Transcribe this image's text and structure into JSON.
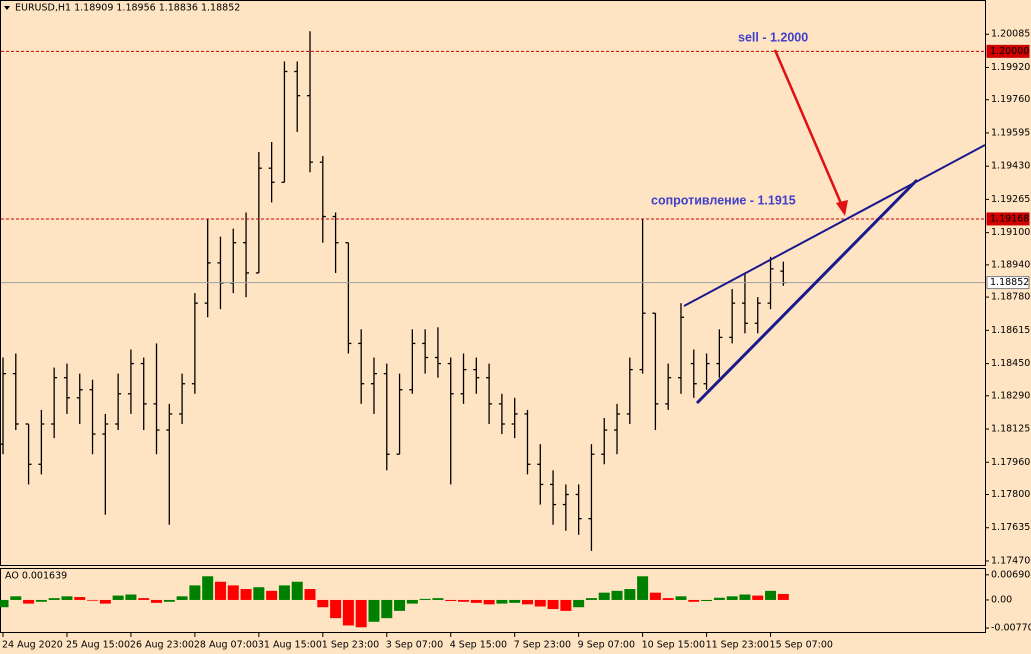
{
  "chart_data": [
    {
      "type": "ohlc",
      "title": "EURUSD,H1  1.18909 1.18956 1.18836 1.18852",
      "color": "#000000",
      "xlim": [
        0,
        77
      ],
      "ylim": [
        1.1745,
        1.2025
      ],
      "yticks": [
        1.20085,
        {
          "value": 1.1992,
          "label": "1.19920"
        },
        {
          "value": 1.1976,
          "label": "1.19760"
        },
        1.19595,
        {
          "value": 1.1943,
          "label": "1.19430"
        },
        1.19265,
        {
          "value": 1.191,
          "label": "1.19100"
        },
        {
          "value": 1.1894,
          "label": "1.18940"
        },
        {
          "value": 1.1878,
          "label": "1.18780"
        },
        1.18615,
        {
          "value": 1.1845,
          "label": "1.18450"
        },
        {
          "value": 1.1829,
          "label": "1.18290"
        },
        1.18125,
        {
          "value": 1.1796,
          "label": "1.17960"
        },
        {
          "value": 1.178,
          "label": "1.17800"
        },
        1.17635,
        {
          "value": 1.1747,
          "label": "1.17470"
        }
      ],
      "open": [
        1.1805,
        1.184,
        1.1815,
        1.1795,
        1.1815,
        1.1838,
        1.1828,
        1.1832,
        1.181,
        1.1815,
        1.183,
        1.1845,
        1.1825,
        1.1812,
        1.182,
        1.1835,
        1.1875,
        1.1895,
        1.1885,
        1.1905,
        1.189,
        1.1942,
        1.1935,
        1.199,
        1.1978,
        1.1945,
        1.1918,
        1.1905,
        1.1855,
        1.1835,
        1.184,
        1.18,
        1.1832,
        1.1855,
        1.1848,
        1.1845,
        1.183,
        1.1842,
        1.1838,
        1.1825,
        1.1815,
        1.182,
        1.1795,
        1.1785,
        1.1775,
        1.178,
        1.1768,
        1.18,
        1.1812,
        1.182,
        1.1842,
        1.187,
        1.1825,
        1.1838,
        1.1845,
        1.1835,
        1.1845,
        1.1858,
        1.1875,
        1.1865,
        1.1875,
        1.18909
      ],
      "high": [
        1.1848,
        1.185,
        1.1815,
        1.1822,
        1.1843,
        1.1845,
        1.184,
        1.1837,
        1.182,
        1.184,
        1.1852,
        1.1848,
        1.1855,
        1.1825,
        1.184,
        1.188,
        1.1917,
        1.1908,
        1.1912,
        1.192,
        1.195,
        1.1955,
        1.1995,
        1.1995,
        1.201,
        1.1948,
        1.192,
        1.1905,
        1.1862,
        1.1848,
        1.1845,
        1.184,
        1.1862,
        1.1862,
        1.1863,
        1.1848,
        1.185,
        1.1848,
        1.1845,
        1.183,
        1.1828,
        1.1822,
        1.1805,
        1.1792,
        1.1785,
        1.1785,
        1.1805,
        1.1818,
        1.1825,
        1.1848,
        1.1917,
        1.187,
        1.1845,
        1.1875,
        1.1852,
        1.185,
        1.1862,
        1.1882,
        1.189,
        1.1878,
        1.1898,
        1.18956
      ],
      "low": [
        1.18,
        1.1812,
        1.1785,
        1.179,
        1.1808,
        1.182,
        1.1815,
        1.18,
        1.177,
        1.1812,
        1.182,
        1.1812,
        1.18,
        1.1765,
        1.1815,
        1.183,
        1.1868,
        1.1872,
        1.188,
        1.1878,
        1.189,
        1.1925,
        1.1935,
        1.196,
        1.194,
        1.1905,
        1.189,
        1.185,
        1.1825,
        1.182,
        1.1792,
        1.18,
        1.183,
        1.184,
        1.1838,
        1.1785,
        1.1825,
        1.183,
        1.1815,
        1.181,
        1.1808,
        1.179,
        1.1775,
        1.1765,
        1.1762,
        1.176,
        1.1752,
        1.1795,
        1.18,
        1.1815,
        1.184,
        1.1812,
        1.1822,
        1.183,
        1.1828,
        1.1832,
        1.1838,
        1.1855,
        1.186,
        1.186,
        1.1872,
        1.18836
      ],
      "close": [
        1.184,
        1.1815,
        1.1795,
        1.1815,
        1.1838,
        1.1828,
        1.1832,
        1.181,
        1.1815,
        1.183,
        1.1845,
        1.1825,
        1.1812,
        1.182,
        1.1835,
        1.1875,
        1.1895,
        1.1885,
        1.1905,
        1.189,
        1.1942,
        1.1935,
        1.199,
        1.1978,
        1.1945,
        1.1918,
        1.1905,
        1.1855,
        1.1835,
        1.184,
        1.18,
        1.1832,
        1.1855,
        1.1848,
        1.1845,
        1.183,
        1.1842,
        1.1838,
        1.1825,
        1.1815,
        1.182,
        1.1795,
        1.1785,
        1.1775,
        1.178,
        1.1768,
        1.18,
        1.1812,
        1.182,
        1.1842,
        1.187,
        1.1825,
        1.1838,
        1.1868,
        1.1835,
        1.1845,
        1.1858,
        1.1875,
        1.1865,
        1.1875,
        1.1892,
        1.18852
      ],
      "levels": [
        {
          "value": 1.2,
          "label": "1.20000",
          "color": "#d00000",
          "dashed": true
        },
        {
          "value": 1.19168,
          "color": "#d00000",
          "dashed": true
        },
        {
          "value": 1.18852,
          "color": "#a0a0a0",
          "dashed": false
        }
      ],
      "annotations": [
        "sell - 1.2000",
        "сопротивление - 1.1915"
      ]
    },
    {
      "type": "histogram",
      "title": "AO 0.001639",
      "up_color": "#008000",
      "down_color": "#ff0000",
      "xlim": [
        0,
        77
      ],
      "ylim": [
        -0.0088,
        0.0085
      ],
      "yticks": [
        0.006904,
        {
          "value": 0,
          "label": "0.00"
        },
        -0.007709
      ],
      "xticks": [
        {
          "value": 0,
          "label": "24 Aug 2020"
        },
        {
          "value": 5,
          "label": "25 Aug 15:00"
        },
        {
          "value": 10,
          "label": "26 Aug 23:00"
        },
        {
          "value": 15,
          "label": "28 Aug 07:00"
        },
        {
          "value": 20,
          "label": "31 Aug 15:00"
        },
        {
          "value": 25,
          "label": "1 Sep 23:00"
        },
        {
          "value": 30,
          "label": "3 Sep 07:00"
        },
        {
          "value": 35,
          "label": "4 Sep 15:00"
        },
        {
          "value": 40,
          "label": "7 Sep 23:00"
        },
        {
          "value": 45,
          "label": "9 Sep 07:00"
        },
        {
          "value": 50,
          "label": "10 Sep 15:00"
        },
        {
          "value": 55,
          "label": "11 Sep 23:00"
        },
        {
          "value": 60,
          "label": "15 Sep 07:00"
        }
      ],
      "values": [
        -0.002,
        0.001,
        -0.001,
        -0.0005,
        0.0005,
        0.001,
        0.0008,
        -0.0002,
        -0.001,
        0.0012,
        0.0015,
        0.0005,
        -0.0008,
        -0.0005,
        0.001,
        0.004,
        0.0065,
        0.005,
        0.004,
        0.003,
        0.0035,
        0.0025,
        0.004,
        0.005,
        0.003,
        -0.002,
        -0.005,
        -0.007,
        -0.0075,
        -0.006,
        -0.005,
        -0.003,
        -0.001,
        0.0003,
        0.0005,
        -0.0003,
        -0.0005,
        -0.0008,
        -0.0012,
        -0.001,
        -0.0008,
        -0.0012,
        -0.0018,
        -0.0025,
        -0.003,
        -0.002,
        0.0005,
        0.002,
        0.0025,
        0.003,
        0.0065,
        0.002,
        0.0005,
        0.001,
        -0.0005,
        -0.0003,
        0.0006,
        0.001,
        0.0015,
        0.0012,
        0.0025,
        0.001639
      ]
    }
  ]
}
